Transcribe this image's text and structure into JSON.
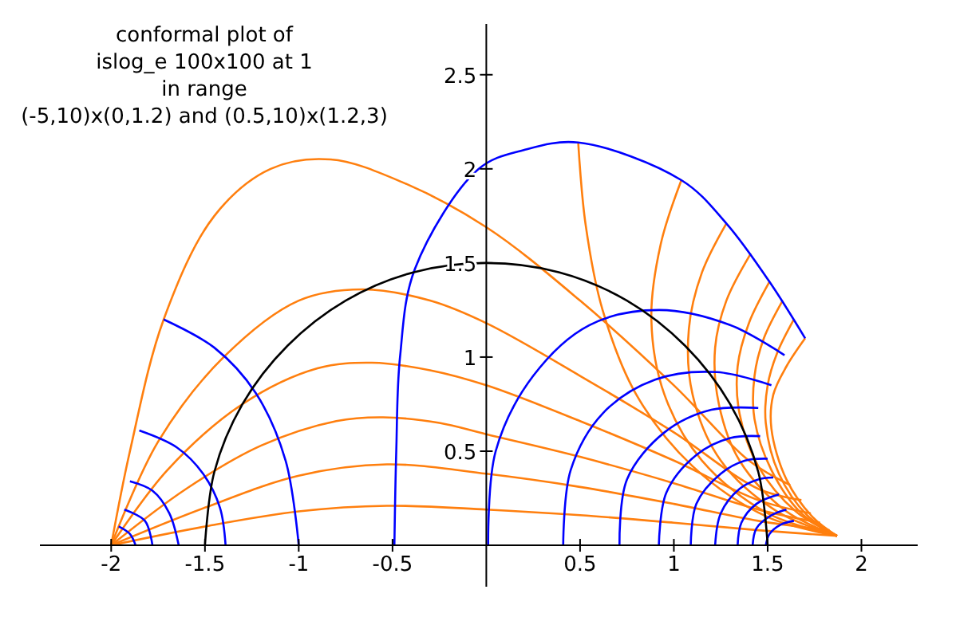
{
  "chart_data": {
    "type": "line",
    "title": "conformal plot of\nislog_e 100x100 at 1\nin range\n(-5,10)x(0,1.2) and (0.5,10)x(1.2,3)",
    "xlim": [
      -2.38,
      2.3
    ],
    "ylim": [
      -0.22,
      2.77
    ],
    "xticks": [
      -2,
      -1.5,
      -1,
      -0.5,
      0.5,
      1,
      1.5,
      2
    ],
    "yticks": [
      0.5,
      1,
      1.5,
      2,
      2.5
    ],
    "grid": false,
    "marker": "none",
    "line_style": "solid",
    "series": [
      {
        "color": "#ff7f0e",
        "x": [
          -2,
          -1.9,
          -1.72,
          -1.45,
          -1.15,
          -0.83,
          -0.45,
          0,
          0.5,
          1.0,
          1.4,
          1.62
        ],
        "values": [
          0,
          0.5,
          1.2,
          1.75,
          2.0,
          2.05,
          1.93,
          1.69,
          1.3,
          0.85,
          0.45,
          0.32
        ]
      },
      {
        "color": "#ff7f0e",
        "x": [
          -2,
          -1.75,
          -1.4,
          -1.0,
          -0.66,
          -0.3,
          0,
          0.5,
          1.0,
          1.45,
          1.68
        ],
        "values": [
          0,
          0.55,
          1.0,
          1.3,
          1.36,
          1.3,
          1.18,
          0.9,
          0.6,
          0.3,
          0.24
        ]
      },
      {
        "color": "#ff7f0e",
        "x": [
          -2,
          -1.7,
          -1.3,
          -0.9,
          -0.61,
          -0.3,
          0,
          0.5,
          1.0,
          1.45,
          1.73
        ],
        "values": [
          0,
          0.4,
          0.75,
          0.94,
          0.97,
          0.93,
          0.85,
          0.66,
          0.45,
          0.24,
          0.17
        ]
      },
      {
        "color": "#ff7f0e",
        "x": [
          -2,
          -1.6,
          -1.2,
          -0.8,
          -0.55,
          -0.25,
          0,
          0.5,
          1.0,
          1.45,
          1.78
        ],
        "values": [
          0,
          0.3,
          0.53,
          0.66,
          0.68,
          0.65,
          0.59,
          0.47,
          0.33,
          0.19,
          0.12
        ]
      },
      {
        "color": "#ff7f0e",
        "x": [
          -2,
          -1.5,
          -1.0,
          -0.53,
          0,
          0.5,
          1.0,
          1.45,
          1.83
        ],
        "values": [
          0,
          0.2,
          0.37,
          0.43,
          0.38,
          0.31,
          0.22,
          0.13,
          0.08
        ]
      },
      {
        "color": "#ff7f0e",
        "x": [
          -2,
          -1.5,
          -1.0,
          -0.53,
          0,
          0.5,
          1.0,
          1.45,
          1.87
        ],
        "values": [
          0,
          0.1,
          0.18,
          0.21,
          0.19,
          0.16,
          0.12,
          0.08,
          0.05
        ]
      },
      {
        "color": "#ff7f0e",
        "x": [
          0.49,
          0.53,
          0.62,
          0.8,
          1.1,
          1.5,
          1.87
        ],
        "values": [
          2.14,
          1.7,
          1.25,
          0.8,
          0.42,
          0.15,
          0.05
        ]
      },
      {
        "color": "#ff7f0e",
        "x": [
          1.04,
          0.93,
          0.88,
          0.95,
          1.15,
          1.5,
          1.87
        ],
        "values": [
          1.94,
          1.6,
          1.2,
          0.8,
          0.45,
          0.17,
          0.05
        ]
      },
      {
        "color": "#ff7f0e",
        "x": [
          1.28,
          1.15,
          1.08,
          1.1,
          1.25,
          1.55,
          1.87
        ],
        "values": [
          1.71,
          1.45,
          1.15,
          0.8,
          0.45,
          0.18,
          0.05
        ]
      },
      {
        "color": "#ff7f0e",
        "x": [
          1.41,
          1.28,
          1.22,
          1.24,
          1.35,
          1.6,
          1.87
        ],
        "values": [
          1.55,
          1.3,
          1.05,
          0.75,
          0.45,
          0.18,
          0.05
        ]
      },
      {
        "color": "#ff7f0e",
        "x": [
          1.51,
          1.4,
          1.34,
          1.35,
          1.45,
          1.65,
          1.87
        ],
        "values": [
          1.4,
          1.18,
          0.95,
          0.7,
          0.42,
          0.18,
          0.05
        ]
      },
      {
        "color": "#ff7f0e",
        "x": [
          1.58,
          1.48,
          1.43,
          1.43,
          1.52,
          1.68,
          1.87
        ],
        "values": [
          1.3,
          1.1,
          0.9,
          0.67,
          0.4,
          0.17,
          0.05
        ]
      },
      {
        "color": "#ff7f0e",
        "x": [
          1.64,
          1.55,
          1.5,
          1.49,
          1.56,
          1.71,
          1.87
        ],
        "values": [
          1.2,
          1.02,
          0.85,
          0.65,
          0.38,
          0.16,
          0.05
        ]
      },
      {
        "color": "#ff7f0e",
        "x": [
          1.7,
          1.6,
          1.53,
          1.52,
          1.6,
          1.74,
          1.87
        ],
        "values": [
          1.1,
          0.95,
          0.8,
          0.62,
          0.35,
          0.15,
          0.05
        ]
      },
      {
        "color": "#0000ff",
        "x": [
          -0.49,
          -0.48,
          -0.46,
          -0.38,
          -0.04,
          0.2,
          0.49,
          1.04,
          1.28,
          1.51,
          1.7
        ],
        "values": [
          0,
          0.5,
          1.0,
          1.47,
          2.0,
          2.1,
          2.14,
          1.94,
          1.71,
          1.4,
          1.1
        ]
      },
      {
        "color": "#0000ff",
        "x": [
          0.01,
          0.05,
          0.25,
          0.55,
          0.92,
          1.3,
          1.59
        ],
        "values": [
          0,
          0.5,
          0.9,
          1.17,
          1.25,
          1.17,
          1.01
        ]
      },
      {
        "color": "#0000ff",
        "x": [
          0.41,
          0.45,
          0.62,
          0.9,
          1.23,
          1.52
        ],
        "values": [
          0,
          0.4,
          0.7,
          0.88,
          0.92,
          0.85
        ]
      },
      {
        "color": "#0000ff",
        "x": [
          0.71,
          0.75,
          0.95,
          1.2,
          1.45
        ],
        "values": [
          0,
          0.35,
          0.6,
          0.72,
          0.73
        ]
      },
      {
        "color": "#0000ff",
        "x": [
          0.92,
          0.96,
          1.12,
          1.3,
          1.46
        ],
        "values": [
          0,
          0.28,
          0.48,
          0.57,
          0.58
        ]
      },
      {
        "color": "#0000ff",
        "x": [
          1.09,
          1.12,
          1.25,
          1.38,
          1.5
        ],
        "values": [
          0,
          0.22,
          0.38,
          0.45,
          0.46
        ]
      },
      {
        "color": "#0000ff",
        "x": [
          1.22,
          1.25,
          1.35,
          1.45,
          1.53
        ],
        "values": [
          0,
          0.17,
          0.3,
          0.35,
          0.36
        ]
      },
      {
        "color": "#0000ff",
        "x": [
          1.34,
          1.36,
          1.44,
          1.56
        ],
        "values": [
          0,
          0.12,
          0.22,
          0.27
        ]
      },
      {
        "color": "#0000ff",
        "x": [
          1.42,
          1.44,
          1.52,
          1.6
        ],
        "values": [
          0,
          0.09,
          0.16,
          0.19
        ]
      },
      {
        "color": "#0000ff",
        "x": [
          1.49,
          1.51,
          1.57,
          1.64
        ],
        "values": [
          0,
          0.06,
          0.11,
          0.13
        ]
      },
      {
        "color": "#0000ff",
        "x": [
          -1.72,
          -1.45,
          -1.23,
          -1.07,
          -1.0
        ],
        "values": [
          1.2,
          1.05,
          0.81,
          0.45,
          0
        ]
      },
      {
        "color": "#0000ff",
        "x": [
          -1.85,
          -1.65,
          -1.51,
          -1.42,
          -1.39
        ],
        "values": [
          0.61,
          0.52,
          0.38,
          0.2,
          0
        ]
      },
      {
        "color": "#0000ff",
        "x": [
          -1.9,
          -1.78,
          -1.69,
          -1.64
        ],
        "values": [
          0.34,
          0.29,
          0.17,
          0
        ]
      },
      {
        "color": "#0000ff",
        "x": [
          -1.93,
          -1.82,
          -1.78
        ],
        "values": [
          0.19,
          0.13,
          0
        ]
      },
      {
        "color": "#0000ff",
        "x": [
          -1.96,
          -1.9,
          -1.87
        ],
        "values": [
          0.1,
          0.06,
          0
        ]
      },
      {
        "color": "#000000",
        "x": [
          -1.5,
          -1.45,
          -1.3,
          -1.06,
          -0.75,
          -0.39,
          0,
          0.39,
          0.75,
          1.06,
          1.3,
          1.45,
          1.5
        ],
        "values": [
          0,
          0.39,
          0.75,
          1.06,
          1.3,
          1.45,
          1.5,
          1.45,
          1.3,
          1.06,
          0.75,
          0.39,
          0
        ]
      }
    ]
  }
}
